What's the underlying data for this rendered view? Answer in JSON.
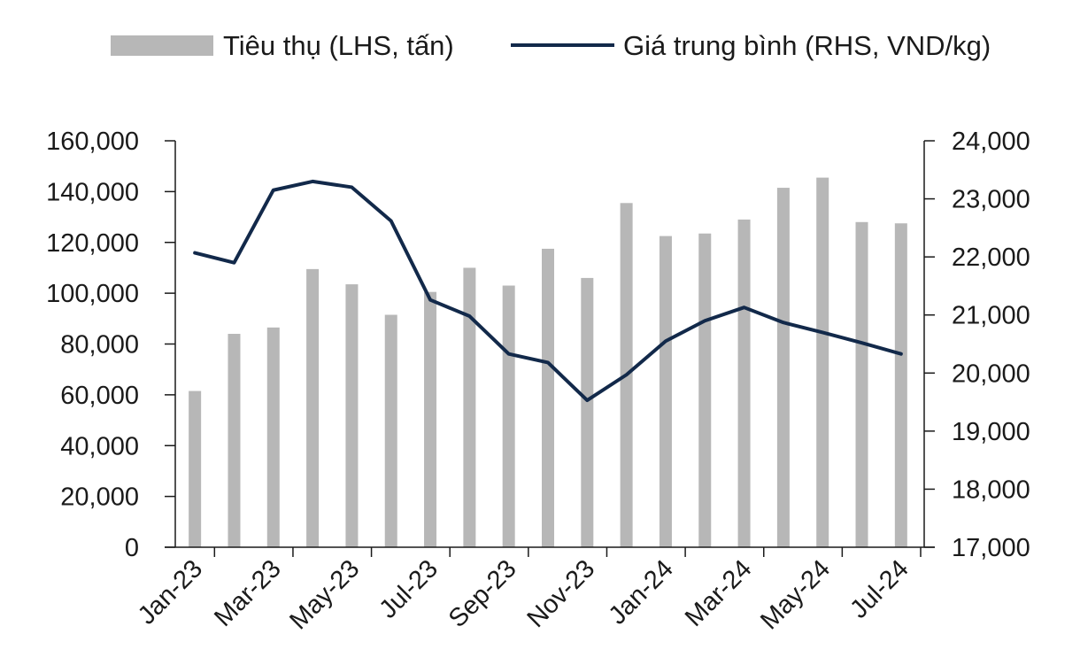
{
  "chart_data": {
    "type": "bar",
    "categories": [
      "Jan-23",
      "Feb-23",
      "Mar-23",
      "Apr-23",
      "May-23",
      "Jun-23",
      "Jul-23",
      "Aug-23",
      "Sep-23",
      "Oct-23",
      "Nov-23",
      "Dec-23",
      "Jan-24",
      "Feb-24",
      "Mar-24",
      "Apr-24",
      "May-24",
      "Jun-24",
      "Jul-24"
    ],
    "x_tick_labels": [
      "Jan-23",
      "Mar-23",
      "May-23",
      "Jul-23",
      "Sep-23",
      "Nov-23",
      "Jan-24",
      "Mar-24",
      "May-24",
      "Jul-24"
    ],
    "series": [
      {
        "name": "Tiêu thụ (LHS, tấn)",
        "type": "bar",
        "axis": "left",
        "color": "#b7b7b7",
        "values": [
          61500,
          84000,
          86500,
          109500,
          103500,
          91500,
          100500,
          110000,
          103000,
          117500,
          106000,
          135500,
          122500,
          123500,
          129000,
          141500,
          145500,
          128000,
          127500
        ]
      },
      {
        "name": "Giá trung bình (RHS, VND/kg)",
        "type": "line",
        "axis": "right",
        "color": "#12294a",
        "values": [
          22070,
          21900,
          23150,
          23300,
          23200,
          22620,
          21260,
          20980,
          20330,
          20180,
          19530,
          19970,
          20550,
          20900,
          21130,
          20870,
          20700,
          20520,
          20330
        ]
      }
    ],
    "y_left": {
      "min": 0,
      "max": 160000,
      "ticks": [
        "0",
        "20,000",
        "40,000",
        "60,000",
        "80,000",
        "100,000",
        "120,000",
        "140,000",
        "160,000"
      ]
    },
    "y_right": {
      "min": 17000,
      "max": 24000,
      "ticks": [
        "17,000",
        "18,000",
        "19,000",
        "20,000",
        "21,000",
        "22,000",
        "23,000",
        "24,000"
      ]
    },
    "legend_position": "top",
    "grid": false
  }
}
